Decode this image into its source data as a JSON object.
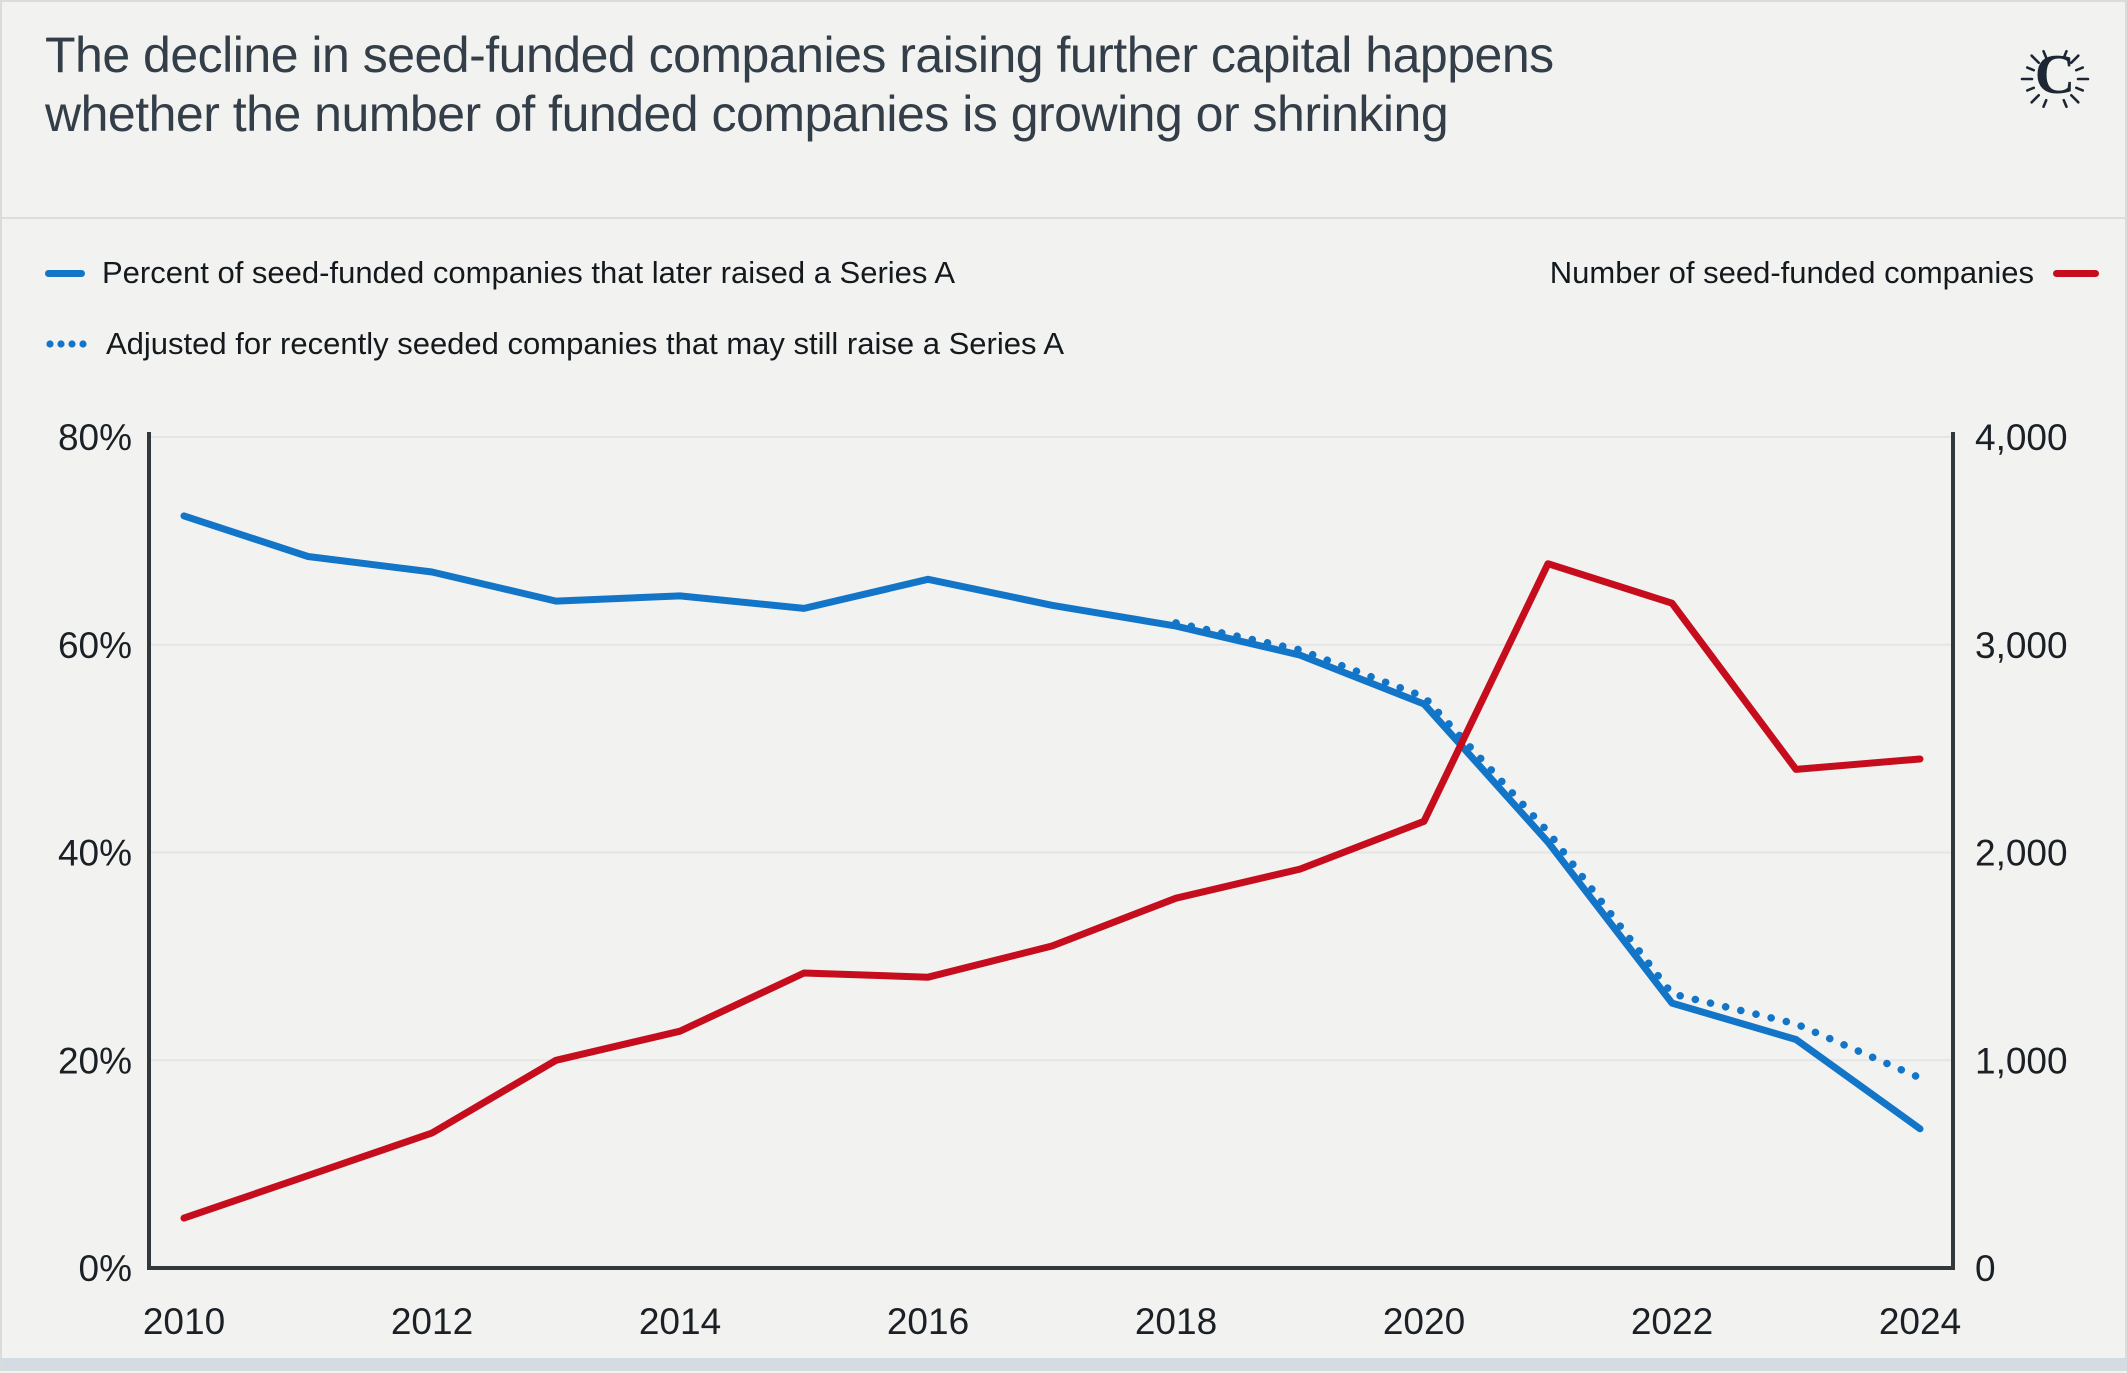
{
  "page": {
    "background": "#f2f3f1",
    "bottom_strip_color": "#d4dce3",
    "divider_color": "#dcdedd"
  },
  "header": {
    "title_line1": "The decline in seed-funded companies raising further capital happens",
    "title_line2": "whether the number of funded companies is growing or shrinking",
    "logo_letter": "C",
    "logo_color": "#1d2733"
  },
  "legend": {
    "solid_blue_label": "Percent of seed-funded companies that later raised a Series A",
    "dotted_blue_label": "Adjusted for recently seeded companies that may still raise a Series A",
    "red_label": "Number of seed-funded companies"
  },
  "colors": {
    "blue": "#1375c8",
    "red": "#c60d1d",
    "grid": "#e4e5e4",
    "axis": "#33383d",
    "tick_text": "#1a2025"
  },
  "chart_data": {
    "type": "line",
    "x": [
      2010,
      2011,
      2012,
      2013,
      2014,
      2015,
      2016,
      2017,
      2018,
      2019,
      2020,
      2021,
      2022,
      2023,
      2024
    ],
    "series": [
      {
        "name": "Percent of seed-funded companies that later raised a Series A",
        "axis": "left",
        "style": "solid",
        "color": "#1375c8",
        "values": [
          72.4,
          68.5,
          67.0,
          64.2,
          64.7,
          63.5,
          66.3,
          63.8,
          61.8,
          59.0,
          54.3,
          41.0,
          25.5,
          22.0,
          13.4
        ]
      },
      {
        "name": "Adjusted for recently seeded companies that may still raise a Series A",
        "axis": "left",
        "style": "dotted",
        "color": "#1375c8",
        "values": [
          null,
          null,
          null,
          null,
          null,
          null,
          null,
          null,
          62.1,
          59.5,
          55.0,
          42.0,
          26.4,
          23.5,
          18.3
        ]
      },
      {
        "name": "Number of seed-funded companies",
        "axis": "right",
        "style": "solid",
        "color": "#c60d1d",
        "values": [
          240,
          445,
          650,
          1000,
          1140,
          1420,
          1400,
          1550,
          1780,
          1920,
          2150,
          3390,
          3200,
          2400,
          2450
        ]
      }
    ],
    "left_axis": {
      "min": 0,
      "max": 80,
      "ticks": [
        "0%",
        "20%",
        "40%",
        "60%",
        "80%"
      ]
    },
    "right_axis": {
      "min": 0,
      "max": 4000,
      "ticks": [
        "0",
        "1,000",
        "2,000",
        "3,000",
        "4,000"
      ]
    },
    "x_ticks": [
      "2010",
      "2012",
      "2014",
      "2016",
      "2018",
      "2020",
      "2022",
      "2024"
    ],
    "grid": true,
    "legend_position": "top"
  }
}
